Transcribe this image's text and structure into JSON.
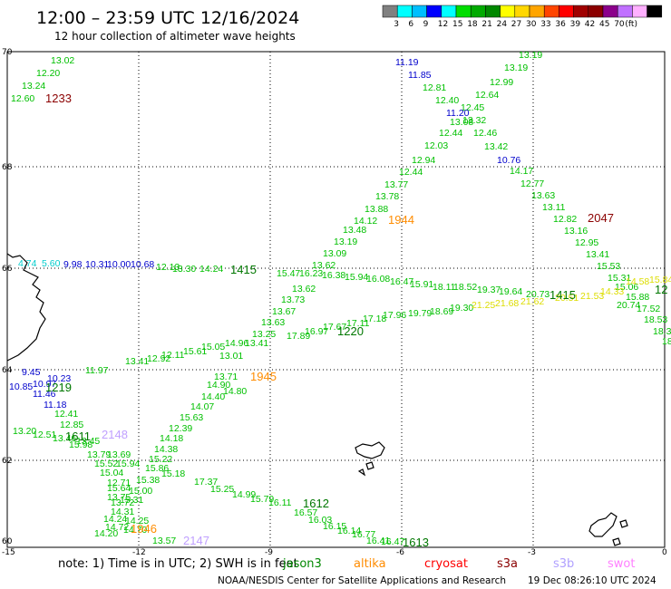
{
  "header": {
    "title": "12:00 – 23:59 UTC 12/16/2024",
    "subtitle": "12 hour collection of altimeter wave heights"
  },
  "legend": {
    "colors": [
      "#808080",
      "#00ffff",
      "#00bfff",
      "#0000ff",
      "#00ffff",
      "#00dd00",
      "#00aa00",
      "#008800",
      "#ffff00",
      "#ffd700",
      "#ffa500",
      "#ff4500",
      "#ff0000",
      "#a00000",
      "#8b0000",
      "#8b008b",
      "#c070ff",
      "#ffb0ff",
      "#000000"
    ],
    "labels": [
      "3",
      "6",
      "9",
      "12",
      "15",
      "18",
      "21",
      "24",
      "27",
      "30",
      "33",
      "36",
      "39",
      "42",
      "45",
      "70",
      "(ft)"
    ]
  },
  "axes": {
    "lon_ticks": [
      "-15",
      "-12",
      "-9",
      "-6",
      "-3",
      "0"
    ],
    "lat_ticks": [
      "70",
      "68",
      "66",
      "64",
      "62",
      "60"
    ]
  },
  "tracks": [
    {
      "color": "#00c000",
      "points": [
        [
          "13.02",
          56,
          70
        ],
        [
          "12.20",
          40,
          84
        ],
        [
          "13.24",
          24,
          98
        ],
        [
          "12.60",
          12,
          112
        ]
      ]
    },
    {
      "color": "#00c000",
      "points": [
        [
          "13.19",
          572,
          64
        ],
        [
          "13.19",
          556,
          78
        ],
        [
          "12.99",
          540,
          94
        ],
        [
          "12.64",
          524,
          108
        ],
        [
          "12.45",
          508,
          122
        ],
        [
          "13.32",
          510,
          136
        ],
        [
          "12.46",
          522,
          150
        ],
        [
          "13.42",
          534,
          165
        ],
        [
          "14.17",
          562,
          192
        ],
        [
          "12.77",
          574,
          206
        ],
        [
          "13.63",
          586,
          219
        ],
        [
          "13.11",
          598,
          232
        ],
        [
          "12.82",
          610,
          245
        ],
        [
          "13.16",
          622,
          258
        ],
        [
          "12.95",
          634,
          271
        ],
        [
          "13.41",
          646,
          284
        ],
        [
          "15.53",
          658,
          297
        ],
        [
          "15.31",
          670,
          310
        ],
        [
          "15.06",
          678,
          320
        ],
        [
          "15.88",
          690,
          331
        ],
        [
          "20.74",
          680,
          340
        ],
        [
          "17.52",
          702,
          344
        ],
        [
          "18.53",
          710,
          356
        ],
        [
          "18.34",
          720,
          369
        ],
        [
          "18.",
          730,
          380
        ]
      ]
    },
    {
      "color": "#0000cc",
      "points": [
        [
          "11.19",
          436,
          72
        ],
        [
          "11.85",
          450,
          86
        ],
        [
          "11.20",
          492,
          128
        ],
        [
          "10.76",
          548,
          180
        ]
      ]
    },
    {
      "color": "#00c000",
      "points": [
        [
          "12.81",
          466,
          100
        ],
        [
          "12.40",
          480,
          114
        ],
        [
          "13.08",
          496,
          138
        ],
        [
          "12.44",
          484,
          150
        ],
        [
          "12.03",
          468,
          164
        ],
        [
          "12.94",
          454,
          180
        ],
        [
          "12.44",
          440,
          193
        ],
        [
          "13.77",
          424,
          207
        ],
        [
          "13.78",
          414,
          220
        ],
        [
          "13.88",
          402,
          234
        ],
        [
          "14.12",
          390,
          247
        ],
        [
          "13.48",
          378,
          257
        ],
        [
          "13.19",
          368,
          270
        ],
        [
          "13.09",
          356,
          283
        ],
        [
          "13.62",
          344,
          296
        ],
        [
          "13.62",
          322,
          322
        ],
        [
          "13.73",
          310,
          334
        ],
        [
          "13.67",
          300,
          347
        ],
        [
          "13.63",
          288,
          359
        ],
        [
          "13.25",
          278,
          372
        ],
        [
          "13.41",
          270,
          382
        ],
        [
          "13.01",
          242,
          396
        ],
        [
          "14.80",
          246,
          435
        ],
        [
          "13.71",
          236,
          419
        ],
        [
          "14.90",
          228,
          428
        ],
        [
          "14.40",
          222,
          441
        ],
        [
          "14.07",
          210,
          452
        ],
        [
          "15.63",
          198,
          464
        ],
        [
          "12.39",
          186,
          476
        ],
        [
          "14.18",
          176,
          487
        ],
        [
          "14.38",
          170,
          499
        ],
        [
          "15.22",
          164,
          510
        ],
        [
          "15.86",
          160,
          520
        ],
        [
          "15.38",
          150,
          533
        ],
        [
          "15.00",
          142,
          545
        ],
        [
          "15.31",
          132,
          555
        ]
      ]
    },
    {
      "color": "#00c000",
      "points": [
        [
          "13.30",
          190,
          300
        ],
        [
          "14.24",
          220,
          300
        ],
        [
          "15.47",
          305,
          305
        ],
        [
          "16.23",
          330,
          305
        ],
        [
          "16.38",
          355,
          307
        ],
        [
          "15.94",
          380,
          309
        ],
        [
          "16.08",
          404,
          311
        ],
        [
          "16.47",
          430,
          314
        ],
        [
          "15.91",
          452,
          317
        ],
        [
          "18.11",
          477,
          320
        ],
        [
          "18.52",
          500,
          320
        ],
        [
          "19.37",
          526,
          323
        ],
        [
          "19.64",
          550,
          325
        ],
        [
          "20.73",
          580,
          328
        ]
      ]
    },
    {
      "color": "#00c000",
      "points": [
        [
          "17.89",
          316,
          374
        ],
        [
          "16.97",
          336,
          369
        ],
        [
          "17.67",
          356,
          364
        ],
        [
          "17.11",
          382,
          360
        ],
        [
          "17.18",
          400,
          355
        ],
        [
          "17.96",
          422,
          351
        ],
        [
          "19.79",
          450,
          349
        ],
        [
          "18.69",
          474,
          347
        ],
        [
          "19.30",
          496,
          343
        ]
      ]
    },
    {
      "color": "#00c000",
      "points": [
        [
          "14.96",
          248,
          382
        ],
        [
          "15.05",
          222,
          386
        ],
        [
          "15.61",
          202,
          391
        ],
        [
          "12.11",
          178,
          395
        ],
        [
          "12.92",
          162,
          399
        ],
        [
          "13.41",
          138,
          402
        ],
        [
          "11.97",
          94,
          412
        ]
      ]
    },
    {
      "color": "#dddd00",
      "points": [
        [
          "21.25",
          520,
          340
        ],
        [
          "21.68",
          546,
          338
        ],
        [
          "21.62",
          574,
          336
        ],
        [
          "20.51",
          612,
          332
        ],
        [
          "21.53",
          640,
          330
        ],
        [
          "14.33",
          662,
          325
        ],
        [
          "14.58",
          690,
          314
        ],
        [
          "15.84",
          716,
          312
        ]
      ]
    },
    {
      "color": "#00cccc",
      "points": [
        [
          "4.74",
          20,
          294
        ],
        [
          "5.60",
          46,
          294
        ]
      ]
    },
    {
      "color": "#0000cc",
      "points": [
        [
          "9.98",
          70,
          295
        ],
        [
          "10.31",
          94,
          295
        ],
        [
          "10.00",
          118,
          295
        ],
        [
          "10.68",
          144,
          295
        ],
        [
          "9.45",
          24,
          414
        ],
        [
          "10.23",
          52,
          421
        ],
        [
          "10.85",
          10,
          430
        ],
        [
          "10.97",
          36,
          427
        ],
        [
          "11.46",
          36,
          438
        ],
        [
          "11.18",
          48,
          450
        ]
      ]
    },
    {
      "color": "#00c000",
      "points": [
        [
          "12.13",
          172,
          298
        ],
        [
          "12.41",
          60,
          460
        ],
        [
          "12.85",
          66,
          472
        ],
        [
          "13.20",
          14,
          479
        ],
        [
          "12.51",
          36,
          483
        ],
        [
          "13.46",
          58,
          487
        ],
        [
          "13.45",
          84,
          490
        ],
        [
          "15.98",
          76,
          494
        ],
        [
          "13.79",
          96,
          505
        ],
        [
          "13.69",
          118,
          505
        ],
        [
          "15.52",
          104,
          515
        ],
        [
          "15.94",
          128,
          515
        ],
        [
          "15.04",
          110,
          525
        ],
        [
          "12.71",
          118,
          536
        ],
        [
          "15.64",
          118,
          542
        ],
        [
          "13.75",
          118,
          552
        ],
        [
          "13.72",
          122,
          558
        ],
        [
          "14.31",
          122,
          568
        ],
        [
          "14.24",
          114,
          576
        ],
        [
          "14.25",
          138,
          578
        ],
        [
          "14.72",
          116,
          585
        ],
        [
          "14.20",
          104,
          592
        ],
        [
          "14.70",
          136,
          588
        ],
        [
          "13.57",
          168,
          600
        ]
      ]
    },
    {
      "color": "#00c000",
      "points": [
        [
          "15.18",
          178,
          526
        ],
        [
          "17.37",
          214,
          535
        ],
        [
          "15.25",
          232,
          543
        ],
        [
          "14.99",
          256,
          549
        ],
        [
          "15.79",
          276,
          554
        ],
        [
          "16.11",
          296,
          558
        ],
        [
          "16.57",
          324,
          569
        ],
        [
          "16.03",
          340,
          577
        ],
        [
          "16.15",
          356,
          584
        ],
        [
          "16.14",
          372,
          589
        ],
        [
          "16.77",
          388,
          593
        ],
        [
          "16.41",
          404,
          600
        ],
        [
          "16.47",
          420,
          601
        ]
      ]
    }
  ],
  "pass_labels": [
    {
      "text": "1233",
      "color": "#8b0000"
    },
    {
      "text": "1944",
      "color": "#ff8c00"
    },
    {
      "text": "2047",
      "color": "#8b0000"
    },
    {
      "text": "1415",
      "color": "#007700"
    },
    {
      "text": "1415",
      "color": "#007700"
    },
    {
      "text": "12",
      "color": "#007700"
    },
    {
      "text": "1220",
      "color": "#007700"
    },
    {
      "text": "1945",
      "color": "#ff8c00"
    },
    {
      "text": "1219",
      "color": "#007700"
    },
    {
      "text": "1611",
      "color": "#007700"
    },
    {
      "text": "2148",
      "color": "#c0a0ff"
    },
    {
      "text": "1612",
      "color": "#007700"
    },
    {
      "text": "1946",
      "color": "#ff8c00"
    },
    {
      "text": "2147",
      "color": "#c0a0ff"
    },
    {
      "text": "1613",
      "color": "#007700"
    }
  ],
  "footer": {
    "note": "note:  1) Time is in UTC; 2) SWH is in feet",
    "satellites": [
      {
        "name": "jason3",
        "color": "#008800"
      },
      {
        "name": "altika",
        "color": "#ff8c00"
      },
      {
        "name": "cryosat",
        "color": "#ff0000"
      },
      {
        "name": "s3a",
        "color": "#8b0000"
      },
      {
        "name": "s3b",
        "color": "#b0a0ff"
      },
      {
        "name": "swot",
        "color": "#ff80ff"
      }
    ],
    "credit": "NOAA/NESDIS Center for Satellite Applications and Research",
    "generated": "19 Dec 08:26:10 UTC 2024"
  }
}
